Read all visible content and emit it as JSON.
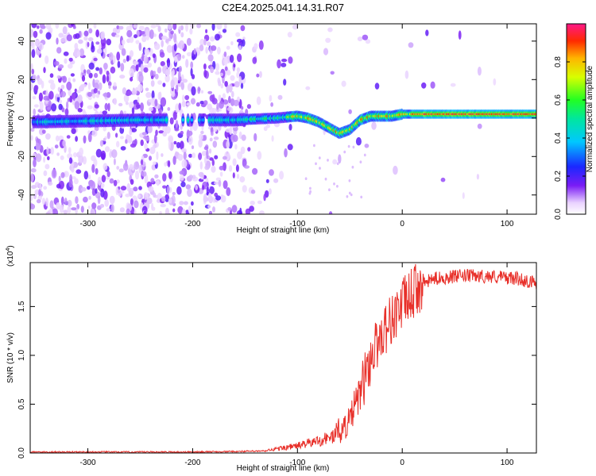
{
  "title": "C2E4.2025.041.14.31.R07",
  "chart_data": [
    {
      "type": "heatmap",
      "xlabel": "Height of straight line (km)",
      "ylabel": "Frequency (Hz)",
      "xlim": [
        -355,
        128
      ],
      "ylim": [
        -50,
        49
      ],
      "xticks": [
        -300,
        -200,
        -100,
        0,
        100
      ],
      "yticks": [
        -40,
        -20,
        0,
        20,
        40
      ],
      "colorbar": {
        "label": "Normalized spectral amplitude",
        "range": [
          0,
          1
        ],
        "ticks": [
          "0.0",
          "0.2",
          "0.4",
          "0.6",
          "0.8"
        ],
        "tick_values": [
          0,
          0.2,
          0.4,
          0.6,
          0.8
        ]
      },
      "ridge": [
        {
          "x": -345,
          "y": -2
        },
        {
          "x": -250,
          "y": -1
        },
        {
          "x": -160,
          "y": -1
        },
        {
          "x": -120,
          "y": 0
        },
        {
          "x": -100,
          "y": 1
        },
        {
          "x": -90,
          "y": 0
        },
        {
          "x": -80,
          "y": -2
        },
        {
          "x": -70,
          "y": -5
        },
        {
          "x": -60,
          "y": -8
        },
        {
          "x": -50,
          "y": -6
        },
        {
          "x": -40,
          "y": -1
        },
        {
          "x": -30,
          "y": 1
        },
        {
          "x": -10,
          "y": 1
        },
        {
          "x": 0,
          "y": 2
        },
        {
          "x": 50,
          "y": 2
        },
        {
          "x": 128,
          "y": 2
        }
      ]
    },
    {
      "type": "line",
      "xlabel": "Height of straight line (km)",
      "ylabel": "SNR (10 * v/v)",
      "yscale_label": "(x10",
      "yscale_exp": "4",
      "yscale_close": ")",
      "xlim": [
        -355,
        128
      ],
      "ylim": [
        0,
        1.95
      ],
      "xticks": [
        -300,
        -200,
        -100,
        0,
        100
      ],
      "yticks": [
        0.0,
        0.5,
        1.0,
        1.5
      ],
      "ytick_labels": [
        "0.0",
        "0.5",
        "1.0",
        "1.5"
      ],
      "series": [
        {
          "color": "#e8302a",
          "envelope": [
            {
              "x": -355,
              "y": 0.01
            },
            {
              "x": -200,
              "y": 0.01
            },
            {
              "x": -130,
              "y": 0.02
            },
            {
              "x": -100,
              "y": 0.06
            },
            {
              "x": -80,
              "y": 0.1
            },
            {
              "x": -65,
              "y": 0.14
            },
            {
              "x": -50,
              "y": 0.35
            },
            {
              "x": -40,
              "y": 0.65
            },
            {
              "x": -30,
              "y": 1.0
            },
            {
              "x": -20,
              "y": 1.25
            },
            {
              "x": -10,
              "y": 1.4
            },
            {
              "x": 0,
              "y": 1.55
            },
            {
              "x": 15,
              "y": 1.72
            },
            {
              "x": 30,
              "y": 1.8
            },
            {
              "x": 60,
              "y": 1.83
            },
            {
              "x": 90,
              "y": 1.82
            },
            {
              "x": 110,
              "y": 1.8
            },
            {
              "x": 128,
              "y": 1.75
            }
          ]
        }
      ]
    }
  ]
}
